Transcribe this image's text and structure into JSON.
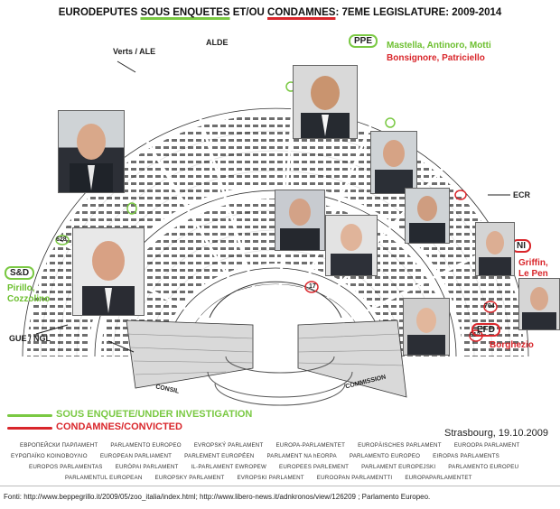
{
  "title": {
    "p1": "EURODEPUTES ",
    "p2": "SOUS ENQUETES",
    "p3": " ET/OU ",
    "p4": "CONDAMNES",
    "p5": ": 7EME LEGISLATURE: 2009-2014"
  },
  "groups": {
    "verts": "Verts / ALE",
    "alde": "ALDE",
    "ppe": "PPE",
    "ecr": "ECR",
    "ni": "NI",
    "sd": "S&D",
    "efd": "EFD",
    "gue": "GUE / NGL",
    "consil": "CONSIL",
    "commission": "COMMISSION"
  },
  "names": {
    "ppe_investigated": "Mastella, Antinoro, Motti",
    "ppe_convicted": "Bonsignore, Patriciello",
    "ni_convicted_1": "Griffin,",
    "ni_convicted_2": "Le Pen",
    "sd_investigated_1": "Pirillo,",
    "sd_investigated_2": "Cozzolino",
    "efd_convicted": "Borghezio"
  },
  "seat_highlights": {
    "green": [
      "628",
      "17"
    ],
    "red": [
      "704",
      "612",
      "17"
    ]
  },
  "legend": {
    "investigation": "SOUS ENQUETE/UNDER INVESTIGATION",
    "convicted": "CONDAMNES/CONVICTED",
    "investigation_color": "#7ac943",
    "convicted_color": "#d9262b"
  },
  "place_date": "Strasbourg, 19.10.2009",
  "parliament_names": [
    [
      "ЕВРОПЕЙСКИ ПАРЛАМЕНТ",
      "PARLAMENTO EUROPEO",
      "EVROPSKÝ PARLAMENT",
      "EUROPA-PARLAMENTET",
      "EUROPÄISCHES PARLAMENT",
      "EUROOPA PARLAMENT"
    ],
    [
      "ΕΥΡΩΠΑΪΚΟ ΚΟΙΝΟΒΟΥΛΙΟ",
      "EUROPEAN PARLIAMENT",
      "PARLEMENT EUROPÉEN",
      "PARLAMENT NA hEORPA",
      "PARLAMENTO EUROPEO",
      "EIROPAS PARLAMENTS"
    ],
    [
      "EUROPOS PARLAMENTAS",
      "EURÓPAI PARLAMENT",
      "IL-PARLAMENT EWROPEW",
      "EUROPEES PARLEMENT",
      "PARLAMENT EUROPEJSKI",
      "PARLAMENTO EUROPEU"
    ],
    [
      "PARLAMENTUL EUROPEAN",
      "EURÓPSKY PARLAMENT",
      "EVROPSKI PARLAMENT",
      "EUROOPAN PARLAMENTTI",
      "EUROPAPARLAMENTET",
      ""
    ]
  ],
  "source": "Fonti: http://www.beppegrillo.it/2009/05/zoo_italia/index.html; http://www.libero-news.it/adnkronos/view/126209 ; Parlamento Europeo."
}
